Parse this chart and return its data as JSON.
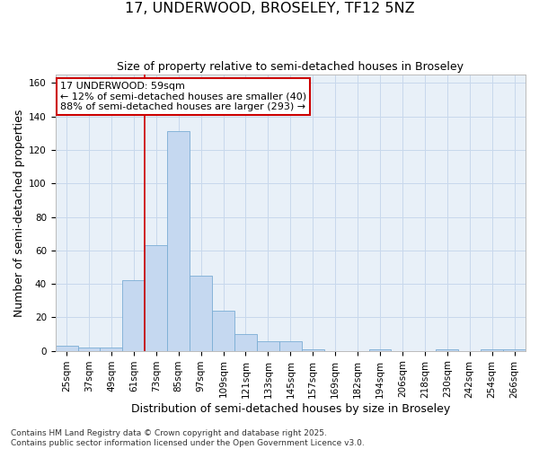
{
  "title": "17, UNDERWOOD, BROSELEY, TF12 5NZ",
  "subtitle": "Size of property relative to semi-detached houses in Broseley",
  "xlabel": "Distribution of semi-detached houses by size in Broseley",
  "ylabel": "Number of semi-detached properties",
  "footer_line1": "Contains HM Land Registry data © Crown copyright and database right 2025.",
  "footer_line2": "Contains public sector information licensed under the Open Government Licence v3.0.",
  "bins": [
    "25sqm",
    "37sqm",
    "49sqm",
    "61sqm",
    "73sqm",
    "85sqm",
    "97sqm",
    "109sqm",
    "121sqm",
    "133sqm",
    "145sqm",
    "157sqm",
    "169sqm",
    "182sqm",
    "194sqm",
    "206sqm",
    "218sqm",
    "230sqm",
    "242sqm",
    "254sqm",
    "266sqm"
  ],
  "values": [
    3,
    2,
    2,
    42,
    63,
    131,
    45,
    24,
    10,
    6,
    6,
    1,
    0,
    0,
    1,
    0,
    0,
    1,
    0,
    1,
    1
  ],
  "bar_color": "#c5d8f0",
  "bar_edge_color": "#7aadd4",
  "vline_color": "#cc0000",
  "annotation_line1": "17 UNDERWOOD: 59sqm",
  "annotation_line2": "← 12% of semi-detached houses are smaller (40)",
  "annotation_line3": "88% of semi-detached houses are larger (293) →",
  "annotation_box_color": "#cc0000",
  "ylim": [
    0,
    165
  ],
  "yticks": [
    0,
    20,
    40,
    60,
    80,
    100,
    120,
    140,
    160
  ],
  "grid_color": "#c8d8ec",
  "bg_color": "#e8f0f8",
  "title_fontsize": 11.5,
  "subtitle_fontsize": 9,
  "axis_label_fontsize": 9,
  "tick_fontsize": 7.5,
  "annotation_fontsize": 8,
  "footer_fontsize": 6.5
}
